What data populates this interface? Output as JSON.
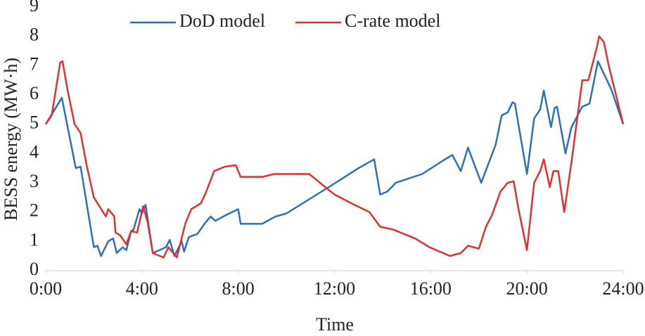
{
  "chart_data": {
    "type": "line",
    "x_label": "Time",
    "y_label": "BESS energy (MW·h)",
    "xlim": [
      0,
      24
    ],
    "ylim": [
      0,
      9
    ],
    "xticks": [
      {
        "value": 0,
        "label": "0:00"
      },
      {
        "value": 4,
        "label": "4:00"
      },
      {
        "value": 8,
        "label": "8:00"
      },
      {
        "value": 12,
        "label": "12:00"
      },
      {
        "value": 16,
        "label": "16:00"
      },
      {
        "value": 20,
        "label": "20:00"
      },
      {
        "value": 24,
        "label": "24:00"
      }
    ],
    "yticks": [
      0,
      1,
      2,
      3,
      4,
      5,
      6,
      7,
      8,
      9
    ],
    "grid": false,
    "legend": "top",
    "series": [
      {
        "name": "DoD model",
        "color": "#2e6fb7",
        "x": [
          0,
          0.67,
          1.25,
          1.45,
          2.0,
          2.15,
          2.3,
          2.6,
          2.8,
          2.95,
          3.2,
          3.35,
          3.55,
          3.65,
          3.9,
          4.0,
          4.15,
          4.45,
          5.0,
          5.15,
          5.35,
          5.65,
          5.75,
          5.95,
          6.3,
          6.6,
          6.85,
          7.05,
          7.5,
          8.0,
          8.1,
          9.0,
          9.55,
          10.0,
          12.05,
          13.0,
          13.65,
          13.9,
          14.2,
          14.55,
          15.65,
          16.5,
          16.9,
          17.25,
          17.55,
          18.1,
          18.7,
          18.95,
          19.2,
          19.4,
          19.5,
          20.0,
          20.3,
          20.55,
          20.7,
          21.0,
          21.15,
          21.25,
          21.6,
          21.85,
          22.3,
          22.6,
          22.95,
          23.5,
          24
        ],
        "values": [
          5.0,
          5.9,
          3.5,
          3.55,
          0.8,
          0.85,
          0.5,
          1.0,
          1.1,
          0.6,
          0.8,
          0.7,
          1.35,
          1.4,
          2.1,
          1.95,
          2.25,
          0.6,
          0.8,
          1.05,
          0.5,
          1.0,
          0.65,
          1.15,
          1.25,
          1.6,
          1.85,
          1.7,
          1.9,
          2.1,
          1.6,
          1.6,
          1.85,
          1.95,
          3.0,
          3.5,
          3.8,
          2.6,
          2.7,
          3.0,
          3.3,
          3.75,
          3.95,
          3.4,
          4.2,
          3.0,
          4.3,
          5.3,
          5.4,
          5.75,
          5.7,
          3.3,
          5.2,
          5.5,
          6.15,
          4.9,
          5.55,
          5.6,
          4.0,
          4.9,
          5.6,
          5.7,
          7.15,
          6.2,
          5.0
        ]
      },
      {
        "name": "C-rate model",
        "color": "#e03030",
        "x": [
          0,
          0.25,
          0.6,
          0.7,
          0.9,
          1.2,
          1.45,
          1.7,
          2.0,
          2.5,
          2.6,
          2.85,
          2.9,
          3.1,
          3.35,
          3.55,
          3.8,
          4.05,
          4.25,
          4.45,
          4.9,
          5.1,
          5.45,
          5.8,
          6.05,
          6.45,
          6.65,
          7.0,
          7.45,
          7.9,
          8.1,
          9.0,
          9.5,
          10.95,
          12.0,
          12.7,
          13.45,
          13.9,
          14.45,
          15.35,
          15.95,
          16.8,
          17.25,
          17.55,
          18.0,
          18.3,
          18.55,
          18.9,
          19.2,
          19.45,
          19.65,
          20.0,
          20.3,
          20.55,
          20.7,
          20.95,
          21.1,
          21.3,
          21.55,
          21.85,
          22.3,
          22.55,
          22.9,
          23.0,
          23.2,
          23.4,
          24
        ],
        "values": [
          5.0,
          5.3,
          7.1,
          7.15,
          6.2,
          5.0,
          4.7,
          3.6,
          2.5,
          1.85,
          2.1,
          1.85,
          1.3,
          1.2,
          0.9,
          1.35,
          1.3,
          2.2,
          1.6,
          0.6,
          0.45,
          0.8,
          0.45,
          1.6,
          2.1,
          2.3,
          2.65,
          3.4,
          3.55,
          3.6,
          3.2,
          3.2,
          3.3,
          3.3,
          2.6,
          2.3,
          2.0,
          1.5,
          1.4,
          1.1,
          0.8,
          0.5,
          0.6,
          0.85,
          0.75,
          1.5,
          1.9,
          2.7,
          3.0,
          3.05,
          2.1,
          0.7,
          3.0,
          3.4,
          3.8,
          2.85,
          3.4,
          3.4,
          2.0,
          3.7,
          6.5,
          6.5,
          7.6,
          8.0,
          7.8,
          7.0,
          5.0
        ]
      }
    ]
  }
}
